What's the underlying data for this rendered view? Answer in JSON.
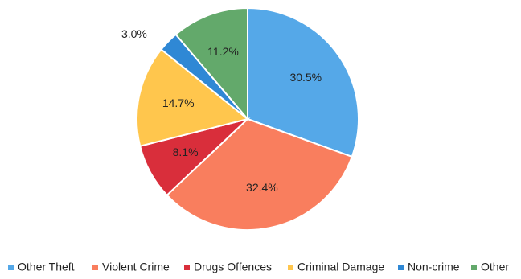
{
  "chart_data": {
    "type": "pie",
    "title": "",
    "legend_position": "bottom",
    "start_angle_degrees": 0,
    "direction": "clockwise",
    "slices": [
      {
        "label": "Other Theft",
        "value": 30.5,
        "value_label": "30.5%",
        "color": "#55A8E8"
      },
      {
        "label": "Violent Crime",
        "value": 32.4,
        "value_label": "32.4%",
        "color": "#F97E5E"
      },
      {
        "label": "Drugs Offences",
        "value": 8.1,
        "value_label": "8.1%",
        "color": "#D92E3B"
      },
      {
        "label": "Criminal Damage",
        "value": 14.7,
        "value_label": "14.7%",
        "color": "#FFC64D"
      },
      {
        "label": "Non-crime",
        "value": 3.0,
        "value_label": "3.0%",
        "color": "#2F88D5"
      },
      {
        "label": "Other",
        "value": 11.2,
        "value_label": "11.2%",
        "color": "#63A96B"
      }
    ]
  }
}
